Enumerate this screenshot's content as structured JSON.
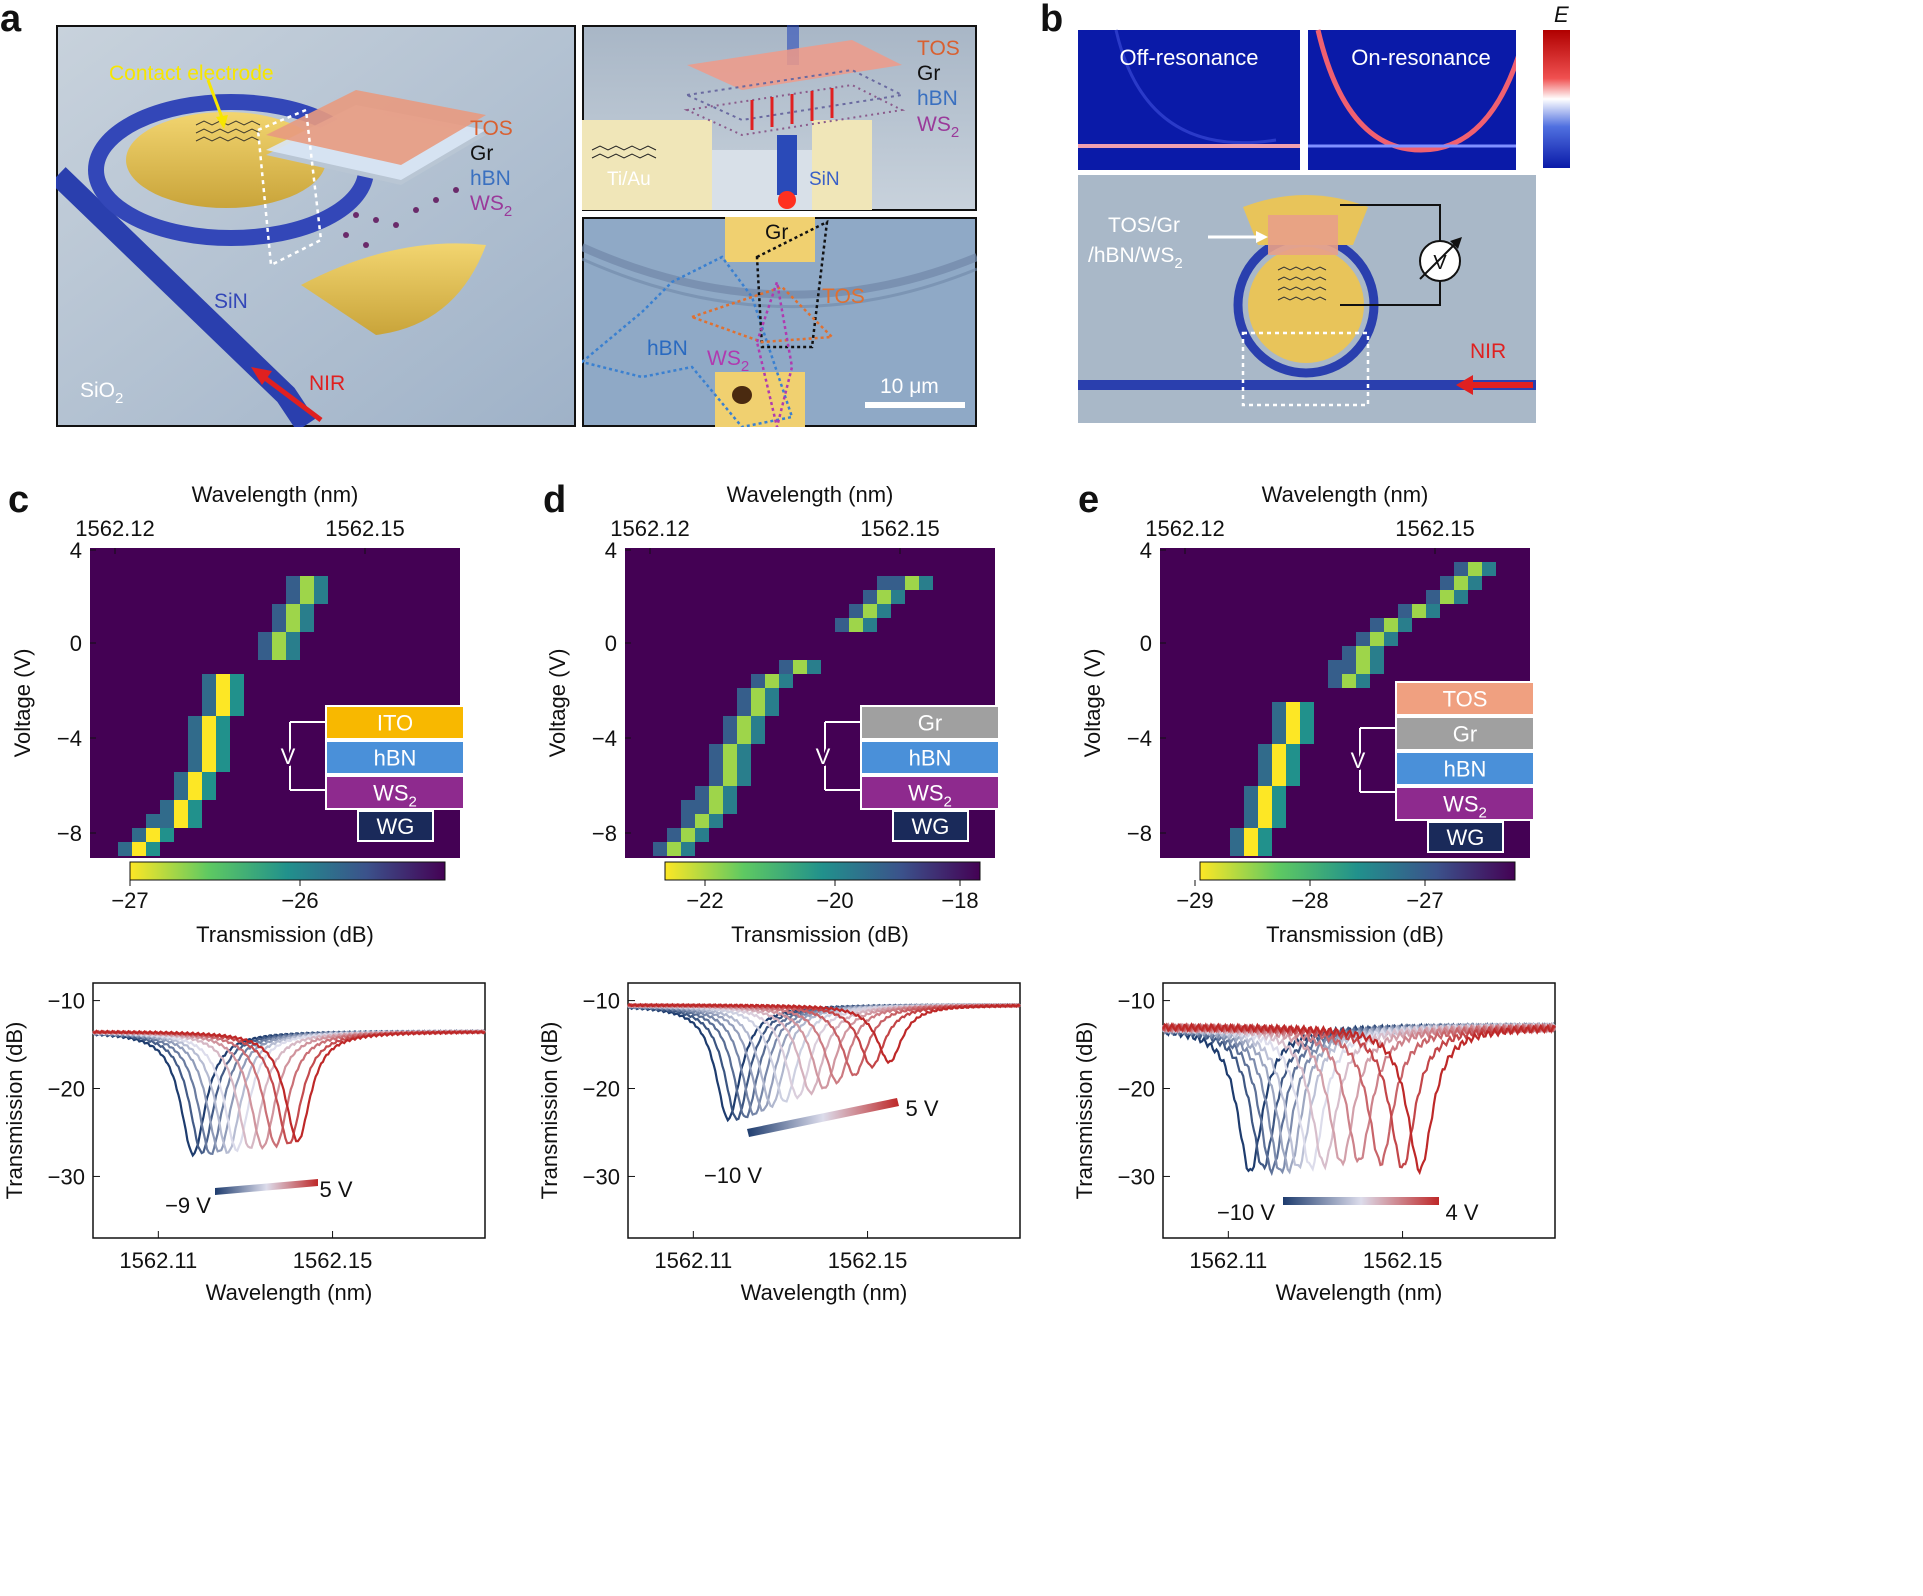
{
  "panels": {
    "a": {
      "letter": "a",
      "schematic": {
        "contact_electrode": "Contact electrode",
        "layers": [
          "TOS",
          "Gr",
          "hBN",
          "WS"
        ],
        "sub2": "2",
        "waveguide": "SiN",
        "substrate": "SiO",
        "substrate_sub": "2",
        "light": "NIR"
      },
      "cross_section": {
        "layers": [
          "TOS",
          "Gr",
          "hBN",
          "WS"
        ],
        "sub2": "2",
        "metal": "Ti/Au",
        "waveguide": "SiN"
      },
      "micrograph": {
        "labels": [
          "Gr",
          "TOS",
          "hBN",
          "WS"
        ],
        "sub2": "2",
        "scale_bar": "10 μm"
      }
    },
    "b": {
      "letter": "b",
      "field_title": "E",
      "off_resonance": "Off-resonance",
      "on_resonance": "On-resonance",
      "stack_label_1": "TOS/Gr",
      "stack_label_2": "/hBN/WS",
      "stack_label_sub": "2",
      "meter": "V",
      "light": "NIR"
    }
  },
  "colors": {
    "sin_blue": "#3a4fb8",
    "gold": "#e8c45a",
    "tos": "#f0a080",
    "nir_red": "#e02020",
    "map_bg": "#440154",
    "ito": "#f8b800",
    "hbn": "#4a90d9",
    "ws2": "#8e2a8e",
    "gr": "#a0a0a0",
    "wg": "#1a2a5a",
    "tos_box": "#f0a080"
  },
  "chart_data": [
    {
      "panel": "c",
      "type": "heatmap",
      "xlabel": "Wavelength (nm)",
      "ylabel": "Voltage (V)",
      "x_ticks": [
        "1562.12",
        "1562.15"
      ],
      "y_ticks": [
        "4",
        "0",
        "−4",
        "−8"
      ],
      "colorbar_label": "Transmission (dB)",
      "colorbar_ticks": [
        "−27",
        "−26"
      ],
      "stack": [
        "ITO",
        "hBN",
        "WS",
        "WG"
      ],
      "voltage_label": "V",
      "sub2": "2"
    },
    {
      "panel": "d",
      "type": "heatmap",
      "xlabel": "Wavelength (nm)",
      "ylabel": "Voltage (V)",
      "x_ticks": [
        "1562.12",
        "1562.15"
      ],
      "y_ticks": [
        "4",
        "0",
        "−4",
        "−8"
      ],
      "colorbar_label": "Transmission (dB)",
      "colorbar_ticks": [
        "−22",
        "−20",
        "−18"
      ],
      "stack": [
        "Gr",
        "hBN",
        "WS",
        "WG"
      ],
      "voltage_label": "V",
      "sub2": "2"
    },
    {
      "panel": "e",
      "type": "heatmap",
      "xlabel": "Wavelength (nm)",
      "ylabel": "Voltage (V)",
      "x_ticks": [
        "1562.12",
        "1562.15"
      ],
      "y_ticks": [
        "4",
        "0",
        "−4",
        "−8"
      ],
      "colorbar_label": "Transmission (dB)",
      "colorbar_ticks": [
        "−29",
        "−28",
        "−27"
      ],
      "stack": [
        "TOS",
        "Gr",
        "hBN",
        "WS",
        "WG"
      ],
      "voltage_label": "V",
      "sub2": "2"
    },
    {
      "panel": "c-spectra",
      "type": "line",
      "xlabel": "Wavelength (nm)",
      "ylabel": "Transmission (dB)",
      "x_ticks": [
        "1562.11",
        "1562.15"
      ],
      "y_ticks": [
        "−10",
        "−20",
        "−30"
      ],
      "v_start": "−9 V",
      "v_end": "5 V",
      "xlim": [
        1562.095,
        1562.185
      ],
      "ylim": [
        -37,
        -8
      ],
      "baseline": -13.5,
      "dips": [
        {
          "center": 1562.118,
          "depth": -27.5
        },
        {
          "center": 1562.12,
          "depth": -27.3
        },
        {
          "center": 1562.122,
          "depth": -27.5
        },
        {
          "center": 1562.124,
          "depth": -27.2
        },
        {
          "center": 1562.126,
          "depth": -27.3
        },
        {
          "center": 1562.128,
          "depth": -27.0
        },
        {
          "center": 1562.131,
          "depth": -26.8
        },
        {
          "center": 1562.134,
          "depth": -26.7
        },
        {
          "center": 1562.137,
          "depth": -26.5
        },
        {
          "center": 1562.14,
          "depth": -26.3
        },
        {
          "center": 1562.142,
          "depth": -26.0
        }
      ]
    },
    {
      "panel": "d-spectra",
      "type": "line",
      "xlabel": "Wavelength (nm)",
      "ylabel": "Transmission (dB)",
      "x_ticks": [
        "1562.11",
        "1562.15"
      ],
      "y_ticks": [
        "−10",
        "−20",
        "−30"
      ],
      "v_start": "−10 V",
      "v_end": "5 V",
      "xlim": [
        1562.095,
        1562.185
      ],
      "ylim": [
        -37,
        -8
      ],
      "baseline": -10.5,
      "dips": [
        {
          "center": 1562.118,
          "depth": -23.5
        },
        {
          "center": 1562.12,
          "depth": -23.5
        },
        {
          "center": 1562.122,
          "depth": -23.3
        },
        {
          "center": 1562.124,
          "depth": -23.0
        },
        {
          "center": 1562.126,
          "depth": -22.5
        },
        {
          "center": 1562.128,
          "depth": -22.0
        },
        {
          "center": 1562.131,
          "depth": -21.5
        },
        {
          "center": 1562.134,
          "depth": -21.0
        },
        {
          "center": 1562.137,
          "depth": -20.5
        },
        {
          "center": 1562.14,
          "depth": -20.0
        },
        {
          "center": 1562.143,
          "depth": -19.3
        },
        {
          "center": 1562.147,
          "depth": -18.5
        },
        {
          "center": 1562.151,
          "depth": -17.5
        },
        {
          "center": 1562.155,
          "depth": -17.0
        }
      ]
    },
    {
      "panel": "e-spectra",
      "type": "line",
      "xlabel": "Wavelength (nm)",
      "ylabel": "Transmission (dB)",
      "x_ticks": [
        "1562.11",
        "1562.15"
      ],
      "y_ticks": [
        "−10",
        "−20",
        "−30"
      ],
      "v_start": "−10 V",
      "v_end": "4 V",
      "xlim": [
        1562.095,
        1562.185
      ],
      "ylim": [
        -37,
        -8
      ],
      "baseline": -13.0,
      "dips": [
        {
          "center": 1562.115,
          "depth": -29.5
        },
        {
          "center": 1562.118,
          "depth": -29.0
        },
        {
          "center": 1562.12,
          "depth": -29.3
        },
        {
          "center": 1562.122,
          "depth": -29.5
        },
        {
          "center": 1562.124,
          "depth": -29.2
        },
        {
          "center": 1562.126,
          "depth": -29.0
        },
        {
          "center": 1562.129,
          "depth": -29.0
        },
        {
          "center": 1562.132,
          "depth": -28.7
        },
        {
          "center": 1562.136,
          "depth": -28.5
        },
        {
          "center": 1562.14,
          "depth": -28.3
        },
        {
          "center": 1562.145,
          "depth": -28.5
        },
        {
          "center": 1562.15,
          "depth": -29.0
        },
        {
          "center": 1562.154,
          "depth": -29.3
        }
      ]
    }
  ]
}
